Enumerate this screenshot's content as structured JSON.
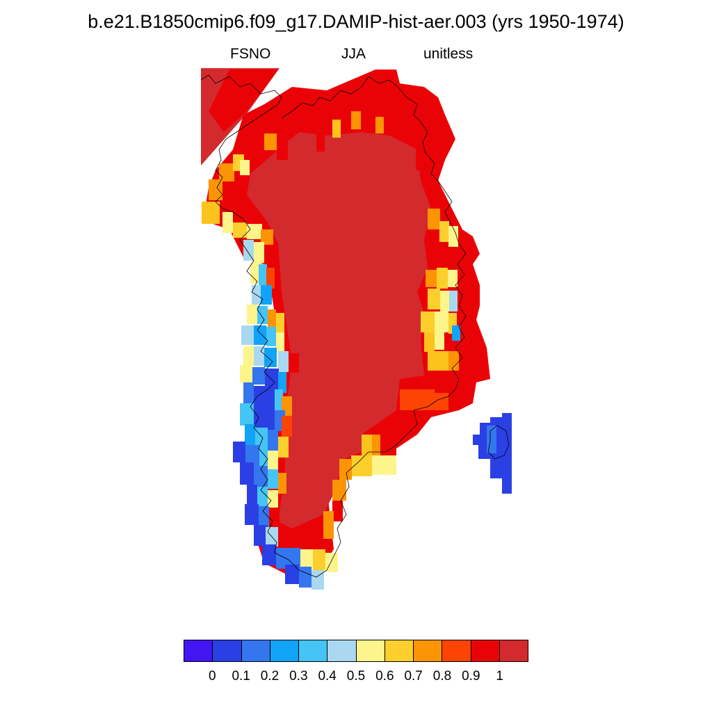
{
  "header": {
    "title": "b.e21.B1850cmip6.f09_g17.DAMIP-hist-aer.003 (yrs 1950-1974)",
    "variable": "FSNO",
    "season": "JJA",
    "units": "unitless"
  },
  "legend": {
    "labels": [
      "0",
      "0.1",
      "0.2",
      "0.3",
      "0.4",
      "0.5",
      "0.6",
      "0.7",
      "0.8",
      "0.9",
      "1"
    ],
    "colors": [
      "#4215f2",
      "#2a40e4",
      "#3476ee",
      "#11a3f7",
      "#45c4f5",
      "#a9d8f0",
      "#fdf48b",
      "#fdcf2d",
      "#fc9404",
      "#fd4402",
      "#ea0306",
      "#d32a2e"
    ]
  },
  "map_region": "Greenland",
  "colors": {
    "ice_sheet": "#d32a2e",
    "coast": "#000000"
  }
}
